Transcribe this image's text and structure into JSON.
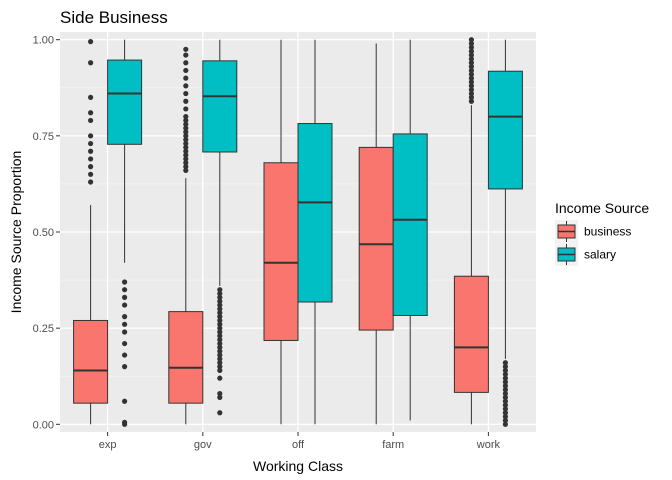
{
  "chart_data": {
    "type": "boxplot",
    "title": "Side Business",
    "xlabel": "Working Class",
    "ylabel": "Income Source Proportion",
    "ylim": [
      -0.02,
      1.02
    ],
    "yticks": [
      0.0,
      0.25,
      0.5,
      0.75,
      1.0
    ],
    "ytick_labels": [
      "0.00",
      "0.25",
      "0.50",
      "0.75",
      "1.00"
    ],
    "categories": [
      "exp",
      "gov",
      "off",
      "farm",
      "work"
    ],
    "grid": true,
    "legend": {
      "title": "Income Source",
      "placement": "right"
    },
    "series": [
      {
        "name": "business",
        "color": "#F8766D",
        "boxes": [
          {
            "category": "exp",
            "whisker_low": 0.0,
            "q1": 0.055,
            "median": 0.14,
            "q3": 0.27,
            "whisker_high": 0.57,
            "outliers": [
              0.63,
              0.65,
              0.67,
              0.69,
              0.71,
              0.73,
              0.75,
              0.79,
              0.81,
              0.85,
              0.94,
              0.995
            ]
          },
          {
            "category": "gov",
            "whisker_low": 0.0,
            "q1": 0.055,
            "median": 0.147,
            "q3": 0.293,
            "whisker_high": 0.64,
            "outliers": [
              0.66,
              0.67,
              0.68,
              0.69,
              0.7,
              0.71,
              0.72,
              0.73,
              0.74,
              0.75,
              0.76,
              0.77,
              0.78,
              0.79,
              0.8,
              0.82,
              0.84,
              0.86,
              0.88,
              0.9,
              0.92,
              0.94,
              0.96,
              0.975
            ]
          },
          {
            "category": "off",
            "whisker_low": 0.0,
            "q1": 0.218,
            "median": 0.42,
            "q3": 0.68,
            "whisker_high": 1.0,
            "outliers": []
          },
          {
            "category": "farm",
            "whisker_low": 0.0,
            "q1": 0.245,
            "median": 0.468,
            "q3": 0.72,
            "whisker_high": 0.99,
            "outliers": []
          },
          {
            "category": "work",
            "whisker_low": 0.0,
            "q1": 0.083,
            "median": 0.2,
            "q3": 0.385,
            "whisker_high": 0.83,
            "outliers": [
              0.84,
              0.85,
              0.86,
              0.87,
              0.88,
              0.89,
              0.9,
              0.91,
              0.92,
              0.93,
              0.94,
              0.95,
              0.96,
              0.97,
              0.98,
              0.99,
              1.0
            ]
          }
        ]
      },
      {
        "name": "salary",
        "color": "#00BFC4",
        "boxes": [
          {
            "category": "exp",
            "whisker_low": 0.42,
            "q1": 0.728,
            "median": 0.86,
            "q3": 0.947,
            "whisker_high": 1.0,
            "outliers": [
              0.0,
              0.005,
              0.06,
              0.15,
              0.18,
              0.21,
              0.24,
              0.26,
              0.28,
              0.31,
              0.33,
              0.35,
              0.37
            ]
          },
          {
            "category": "gov",
            "whisker_low": 0.36,
            "q1": 0.708,
            "median": 0.853,
            "q3": 0.945,
            "whisker_high": 1.0,
            "outliers": [
              0.03,
              0.07,
              0.08,
              0.12,
              0.14,
              0.15,
              0.16,
              0.17,
              0.18,
              0.19,
              0.2,
              0.21,
              0.22,
              0.23,
              0.24,
              0.25,
              0.26,
              0.27,
              0.28,
              0.29,
              0.3,
              0.31,
              0.32,
              0.33,
              0.34,
              0.35
            ]
          },
          {
            "category": "off",
            "whisker_low": 0.0,
            "q1": 0.318,
            "median": 0.577,
            "q3": 0.782,
            "whisker_high": 1.0,
            "outliers": []
          },
          {
            "category": "farm",
            "whisker_low": 0.01,
            "q1": 0.283,
            "median": 0.532,
            "q3": 0.755,
            "whisker_high": 1.0,
            "outliers": []
          },
          {
            "category": "work",
            "whisker_low": 0.17,
            "q1": 0.612,
            "median": 0.8,
            "q3": 0.918,
            "whisker_high": 1.0,
            "outliers": [
              0.0,
              0.01,
              0.02,
              0.03,
              0.04,
              0.05,
              0.06,
              0.07,
              0.08,
              0.09,
              0.1,
              0.11,
              0.12,
              0.13,
              0.14,
              0.15,
              0.16
            ]
          }
        ]
      }
    ]
  }
}
